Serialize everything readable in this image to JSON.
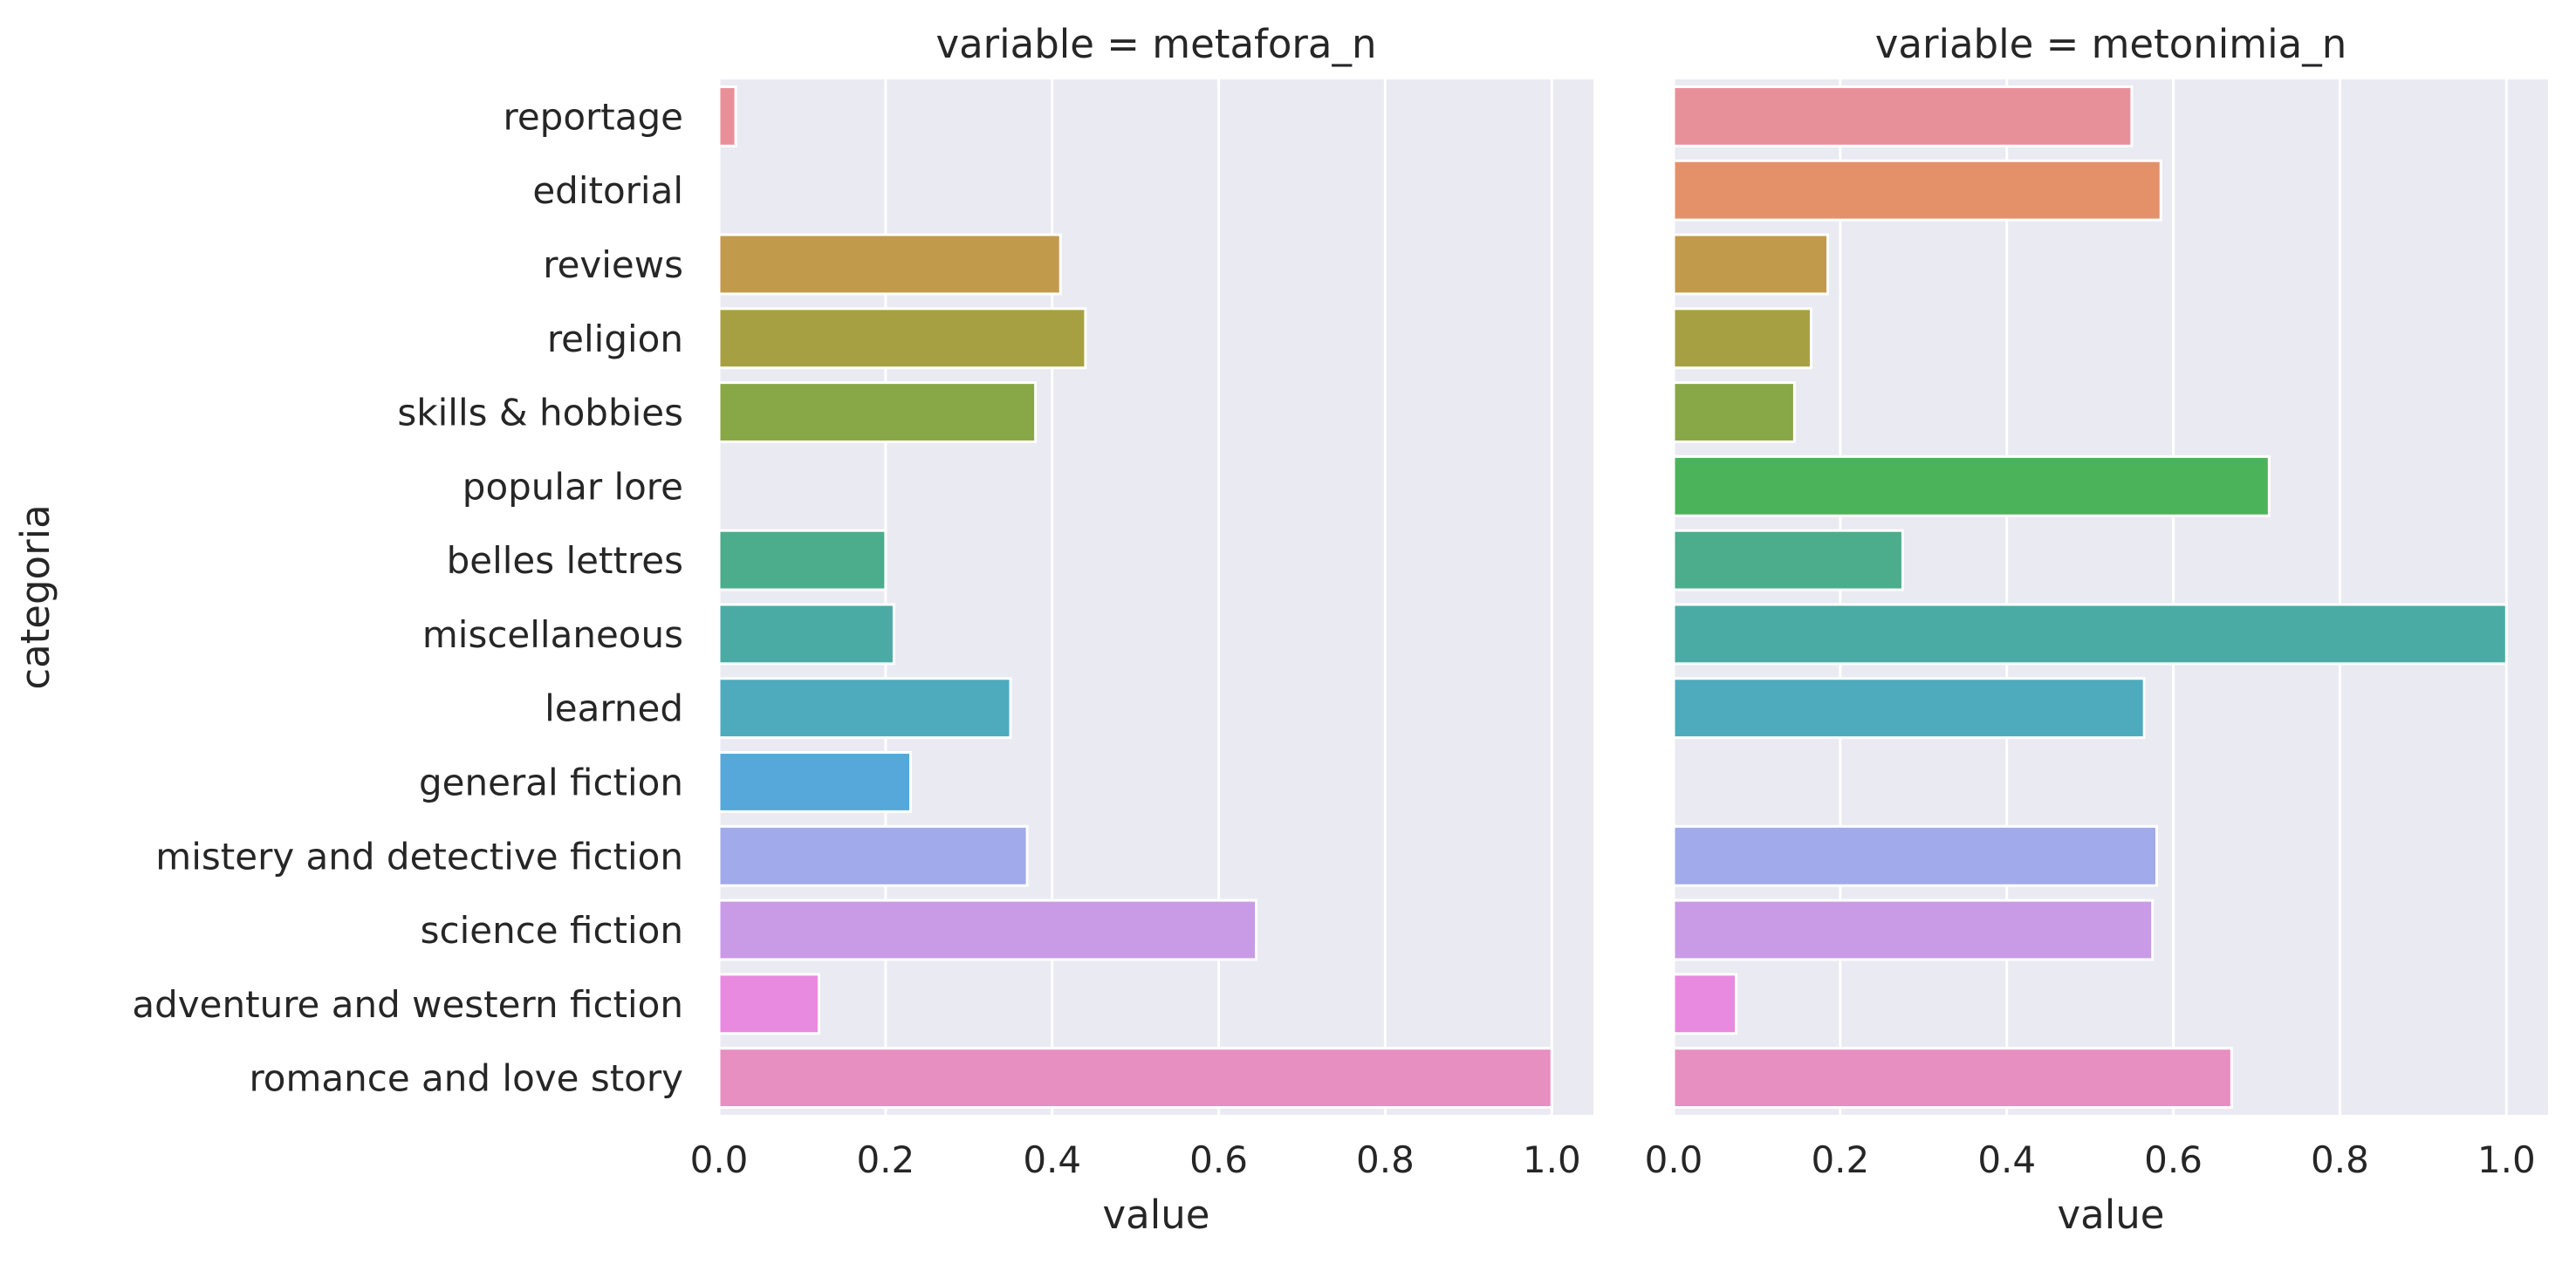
{
  "chart_data": {
    "type": "bar",
    "orientation": "horizontal",
    "y_axis_label": "categoria",
    "categories": [
      "reportage",
      "editorial",
      "reviews",
      "religion",
      "skills & hobbies",
      "popular lore",
      "belles lettres",
      "miscellaneous",
      "learned",
      "general fiction",
      "mistery and detective fiction",
      "science fiction",
      "adventure and western fiction",
      "romance and love story"
    ],
    "colors": [
      "#e8909a",
      "#e4916a",
      "#c29a4c",
      "#a7a042",
      "#88a746",
      "#4bb35a",
      "#4bad8b",
      "#4aaba4",
      "#4dabbd",
      "#55a8d9",
      "#a1aaea",
      "#c99be6",
      "#e88ae0",
      "#e78fc1"
    ],
    "grid": true,
    "background": "#eaeaf2",
    "xlim": [
      0,
      1.05
    ],
    "ticks": [
      "0.0",
      "0.2",
      "0.4",
      "0.6",
      "0.8",
      "1.0"
    ],
    "panels": [
      {
        "title": "variable = metafora_n",
        "xlabel": "value",
        "values": [
          0.02,
          0.0,
          0.41,
          0.44,
          0.38,
          0.0,
          0.2,
          0.21,
          0.35,
          0.23,
          0.37,
          0.645,
          0.12,
          1.0
        ]
      },
      {
        "title": "variable = metonimia_n",
        "xlabel": "value",
        "values": [
          0.55,
          0.585,
          0.185,
          0.165,
          0.145,
          0.715,
          0.275,
          1.0,
          0.565,
          0.0,
          0.58,
          0.575,
          0.075,
          0.67
        ]
      }
    ]
  }
}
